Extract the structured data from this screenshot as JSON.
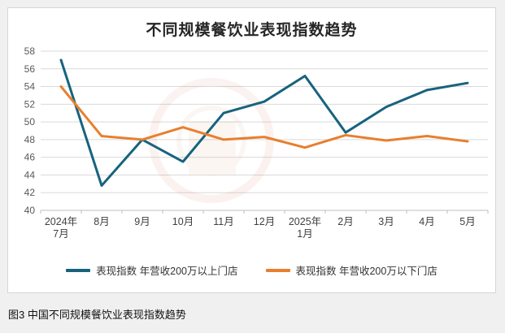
{
  "title": "不同规模餐饮业表现指数趋势",
  "caption": "图3 中国不同规模餐饮业表现指数趋势",
  "colors": {
    "series_above": "#17637e",
    "series_below": "#e87f2e",
    "gridline": "#d9d9d9",
    "axis": "#bfbfbf",
    "watermark": "#cc5533"
  },
  "chart_data": {
    "type": "line",
    "title": "不同规模餐饮业表现指数趋势",
    "categories": [
      "2024年\n7月",
      "8月",
      "9月",
      "10月",
      "11月",
      "12月",
      "2025年\n1月",
      "2月",
      "3月",
      "4月",
      "5月"
    ],
    "series": [
      {
        "name": "表现指数 年营收200万以上门店",
        "color": "#17637e",
        "values": [
          57.0,
          42.8,
          48.0,
          45.5,
          51.0,
          52.3,
          55.2,
          48.8,
          51.7,
          53.6,
          54.4
        ]
      },
      {
        "name": "表现指数 年营收200万以下门店",
        "color": "#e87f2e",
        "values": [
          54.0,
          48.4,
          48.0,
          49.4,
          48.0,
          48.3,
          47.1,
          48.5,
          47.9,
          48.4,
          47.8
        ]
      }
    ],
    "xlabel": "",
    "ylabel": "",
    "ylim": [
      40,
      58
    ],
    "ytick_step": 2,
    "grid": true,
    "legend_position": "bottom"
  }
}
